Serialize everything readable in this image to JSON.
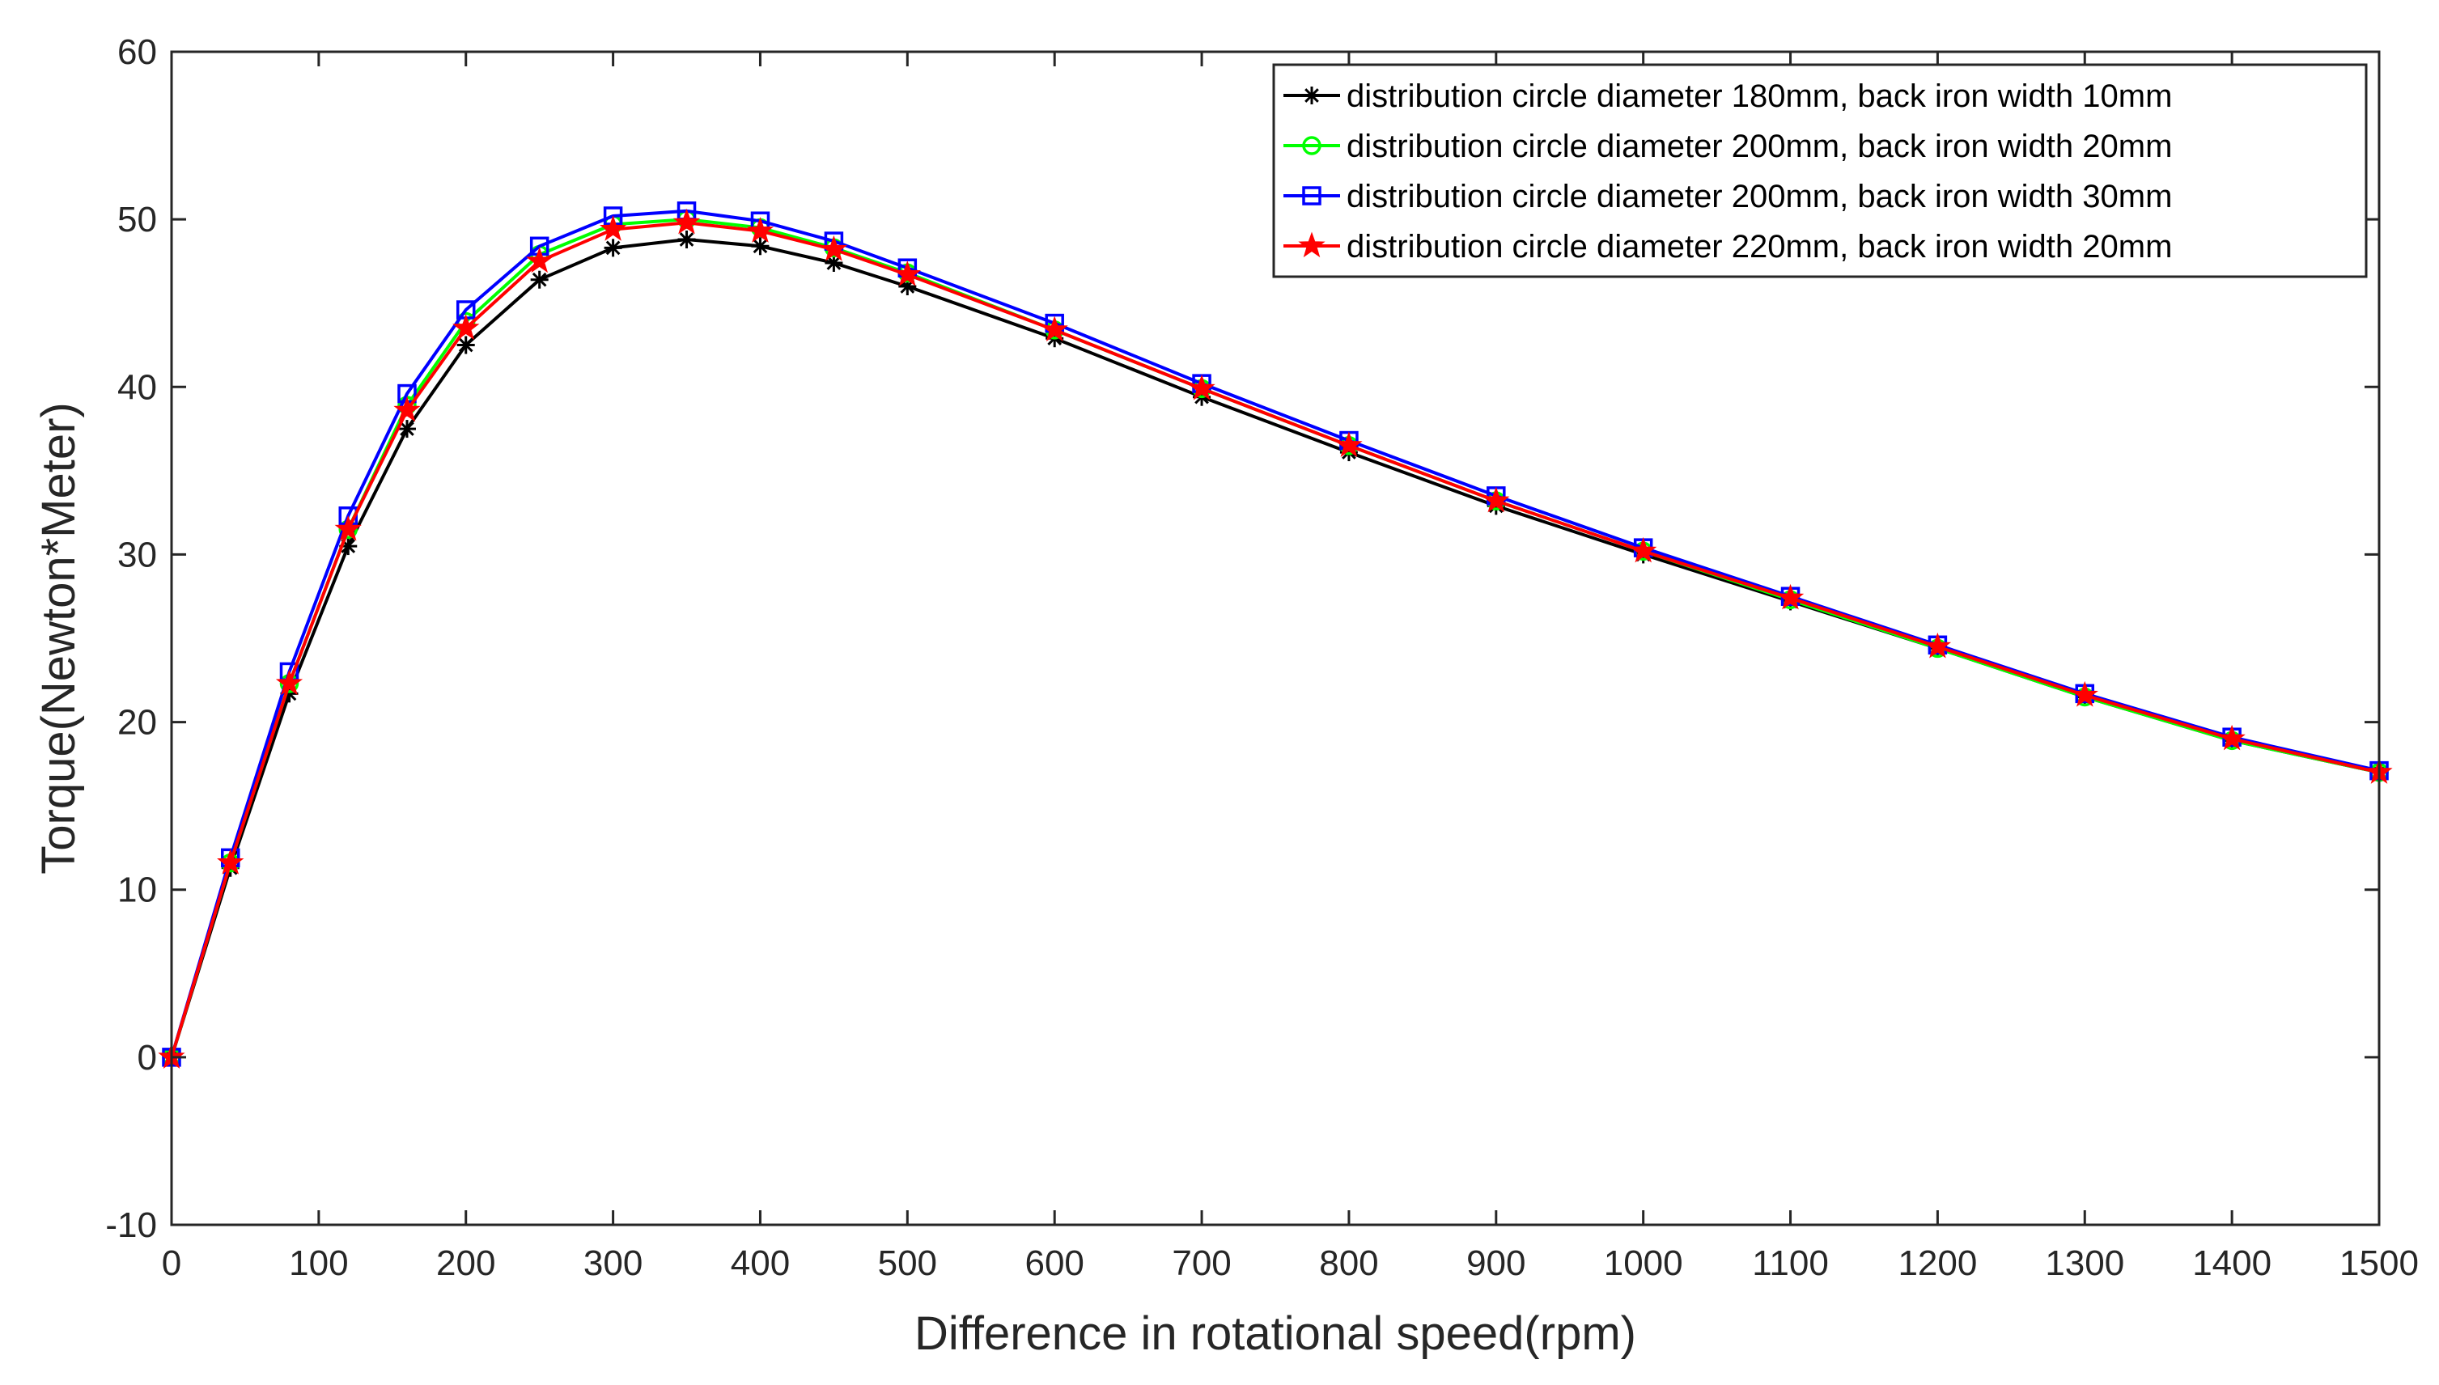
{
  "chart_data": {
    "type": "line",
    "title": "",
    "xlabel": "Difference in rotational speed(rpm)",
    "ylabel": "Torque(Newton*Meter)",
    "xlim": [
      0,
      1500
    ],
    "ylim": [
      -10,
      60
    ],
    "xticks": [
      0,
      100,
      200,
      300,
      400,
      500,
      600,
      700,
      800,
      900,
      1000,
      1100,
      1200,
      1300,
      1400,
      1500
    ],
    "yticks": [
      -10,
      0,
      10,
      20,
      30,
      40,
      50,
      60
    ],
    "grid": false,
    "legend_position": "top-right",
    "x": [
      0,
      40,
      80,
      120,
      160,
      200,
      250,
      300,
      350,
      400,
      450,
      500,
      600,
      700,
      800,
      900,
      1000,
      1100,
      1200,
      1300,
      1400,
      1500
    ],
    "series": [
      {
        "name": "distribution circle diameter 180mm, back iron width 10mm",
        "color": "#000000",
        "marker": "asterisk",
        "values": [
          0,
          11.3,
          21.7,
          30.5,
          37.5,
          42.5,
          46.4,
          48.3,
          48.8,
          48.4,
          47.4,
          46.0,
          42.9,
          39.4,
          36.1,
          32.9,
          30.0,
          27.2,
          24.4,
          21.5,
          18.9,
          17.0
        ]
      },
      {
        "name": "distribution circle diameter 200mm, back iron width 20mm",
        "color": "#00ff00",
        "marker": "circle",
        "values": [
          0,
          11.6,
          22.3,
          31.5,
          38.9,
          43.9,
          47.9,
          49.7,
          50.0,
          49.5,
          48.3,
          46.8,
          43.4,
          39.9,
          36.5,
          33.2,
          30.2,
          27.3,
          24.4,
          21.5,
          18.9,
          17.0
        ]
      },
      {
        "name": "distribution circle diameter 200mm, back iron width 30mm",
        "color": "#0000ff",
        "marker": "square",
        "values": [
          0,
          11.9,
          23.0,
          32.3,
          39.6,
          44.6,
          48.4,
          50.2,
          50.5,
          49.9,
          48.7,
          47.1,
          43.8,
          40.2,
          36.8,
          33.5,
          30.4,
          27.5,
          24.6,
          21.7,
          19.1,
          17.1
        ]
      },
      {
        "name": "distribution circle diameter 220mm, back iron width 20mm",
        "color": "#ff0000",
        "marker": "star",
        "values": [
          0,
          11.6,
          22.3,
          31.5,
          38.6,
          43.5,
          47.5,
          49.4,
          49.8,
          49.3,
          48.2,
          46.7,
          43.4,
          39.9,
          36.5,
          33.2,
          30.2,
          27.4,
          24.5,
          21.6,
          19.0,
          17.0
        ]
      }
    ]
  }
}
